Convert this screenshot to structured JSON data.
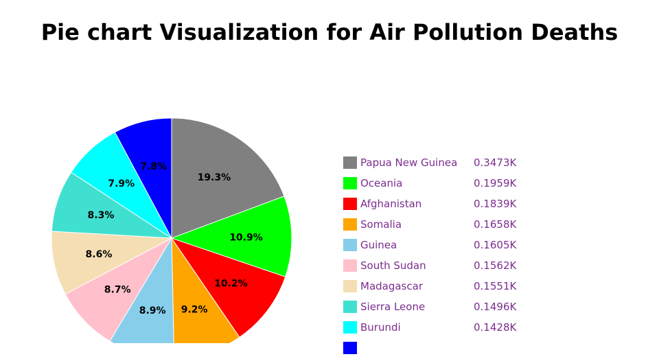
{
  "chart_data": {
    "type": "pie",
    "title": "Pie chart Visualization for Air Pollution Deaths",
    "slices": [
      {
        "label": "Papua New Guinea",
        "value": 0.3473,
        "display_value": "0.3473K",
        "percent_label": "19.3%",
        "color": "#808080"
      },
      {
        "label": "Oceania",
        "value": 0.1959,
        "display_value": "0.1959K",
        "percent_label": "10.9%",
        "color": "#00ff00"
      },
      {
        "label": "Afghanistan",
        "value": 0.1839,
        "display_value": "0.1839K",
        "percent_label": "10.2%",
        "color": "#ff0000"
      },
      {
        "label": "Somalia",
        "value": 0.1658,
        "display_value": "0.1658K",
        "percent_label": "9.2%",
        "color": "#ffa500"
      },
      {
        "label": "Guinea",
        "value": 0.1605,
        "display_value": "0.1605K",
        "percent_label": "8.9%",
        "color": "#87ceeb"
      },
      {
        "label": "South Sudan",
        "value": 0.1562,
        "display_value": "0.1562K",
        "percent_label": "8.7%",
        "color": "#ffc0cb"
      },
      {
        "label": "Madagascar",
        "value": 0.1551,
        "display_value": "0.1551K",
        "percent_label": "8.6%",
        "color": "#f5deb3"
      },
      {
        "label": "Sierra Leone",
        "value": 0.1496,
        "display_value": "0.1496K",
        "percent_label": "8.3%",
        "color": "#40e0d0"
      },
      {
        "label": "Burundi",
        "value": 0.1428,
        "display_value": "0.1428K",
        "percent_label": "7.9%",
        "color": "#00ffff"
      },
      {
        "label": "",
        "value": 0.1406,
        "display_value": "",
        "percent_label": "7.8%",
        "color": "#0000ff"
      }
    ],
    "legend_position": "right",
    "legend_text_color": "#7b2d8e"
  }
}
